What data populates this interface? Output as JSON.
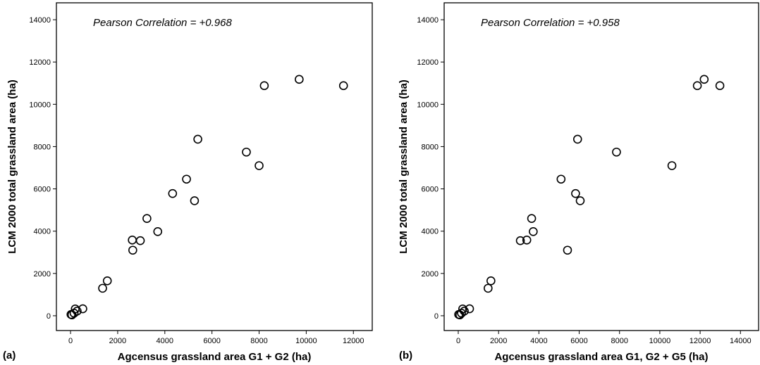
{
  "chart_data": [
    {
      "type": "scatter",
      "panel_label": "(a)",
      "annotation": "Pearson Correlation = +0.968",
      "xlabel": "Agcensus grassland area G1 + G2 (ha)",
      "ylabel": "LCM 2000 total grassland area (ha)",
      "xlim": [
        -600,
        12800
      ],
      "ylim": [
        -700,
        14800
      ],
      "xticks": [
        0,
        2000,
        4000,
        6000,
        8000,
        10000,
        12000
      ],
      "yticks": [
        0,
        2000,
        4000,
        6000,
        8000,
        10000,
        12000,
        14000
      ],
      "grid": false,
      "points": [
        {
          "x": 20,
          "y": 60
        },
        {
          "x": 60,
          "y": 40
        },
        {
          "x": 150,
          "y": 120
        },
        {
          "x": 200,
          "y": 320
        },
        {
          "x": 280,
          "y": 220
        },
        {
          "x": 520,
          "y": 330
        },
        {
          "x": 1360,
          "y": 1300
        },
        {
          "x": 1560,
          "y": 1650
        },
        {
          "x": 2620,
          "y": 3580
        },
        {
          "x": 2640,
          "y": 3100
        },
        {
          "x": 2960,
          "y": 3550
        },
        {
          "x": 3240,
          "y": 4600
        },
        {
          "x": 3700,
          "y": 3980
        },
        {
          "x": 4330,
          "y": 5780
        },
        {
          "x": 4920,
          "y": 6460
        },
        {
          "x": 5260,
          "y": 5440
        },
        {
          "x": 5400,
          "y": 8350
        },
        {
          "x": 7460,
          "y": 7740
        },
        {
          "x": 8000,
          "y": 7100
        },
        {
          "x": 8220,
          "y": 10880
        },
        {
          "x": 9700,
          "y": 11180
        },
        {
          "x": 11580,
          "y": 10880
        }
      ]
    },
    {
      "type": "scatter",
      "panel_label": "(b)",
      "annotation": "Pearson Correlation = +0.958",
      "xlabel": "Agcensus grassland area G1, G2 + G5 (ha)",
      "ylabel": "LCM 2000 total grassland area (ha)",
      "xlim": [
        -700,
        14900
      ],
      "ylim": [
        -700,
        14800
      ],
      "xticks": [
        0,
        2000,
        4000,
        6000,
        8000,
        10000,
        12000,
        14000
      ],
      "yticks": [
        0,
        2000,
        4000,
        6000,
        8000,
        10000,
        12000,
        14000
      ],
      "grid": false,
      "points": [
        {
          "x": 20,
          "y": 60
        },
        {
          "x": 80,
          "y": 40
        },
        {
          "x": 160,
          "y": 120
        },
        {
          "x": 220,
          "y": 320
        },
        {
          "x": 300,
          "y": 220
        },
        {
          "x": 560,
          "y": 330
        },
        {
          "x": 1480,
          "y": 1300
        },
        {
          "x": 1620,
          "y": 1650
        },
        {
          "x": 3080,
          "y": 3550
        },
        {
          "x": 3400,
          "y": 3580
        },
        {
          "x": 3640,
          "y": 4600
        },
        {
          "x": 3720,
          "y": 3980
        },
        {
          "x": 5100,
          "y": 6460
        },
        {
          "x": 5420,
          "y": 3100
        },
        {
          "x": 5820,
          "y": 5780
        },
        {
          "x": 5920,
          "y": 8350
        },
        {
          "x": 6050,
          "y": 5440
        },
        {
          "x": 7850,
          "y": 7740
        },
        {
          "x": 10600,
          "y": 7100
        },
        {
          "x": 11860,
          "y": 10880
        },
        {
          "x": 12200,
          "y": 11180
        },
        {
          "x": 12980,
          "y": 10880
        }
      ]
    }
  ]
}
